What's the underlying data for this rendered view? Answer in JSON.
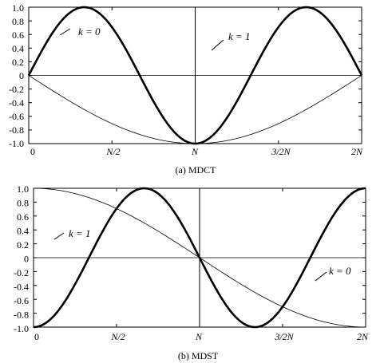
{
  "chart_data": [
    {
      "type": "line",
      "caption": "(a) MDCT",
      "xlim": [
        0,
        2
      ],
      "ylim": [
        -1.0,
        1.0
      ],
      "x_ticks": [
        {
          "value": 0,
          "label": "0"
        },
        {
          "value": 0.5,
          "label": "N/2"
        },
        {
          "value": 1,
          "label": "N"
        },
        {
          "value": 1.5,
          "label": "3/2N"
        },
        {
          "value": 2,
          "label": "2N"
        }
      ],
      "y_ticks": [
        "1.0",
        "0.8",
        "0.6",
        "0.4",
        "0.2",
        "0",
        "-0.2",
        "-0.4",
        "-0.6",
        "-0.8",
        "-1.0"
      ],
      "zero_line": true,
      "vertical_marker_at": 1,
      "grid": false,
      "series": [
        {
          "name": "k = 0",
          "function": "cos",
          "k": 0,
          "stroke": "thin"
        },
        {
          "name": "k = 1",
          "function": "cos",
          "k": 1,
          "stroke": "thick"
        }
      ],
      "annotations": [
        {
          "text": "k = 0",
          "series": "k = 0",
          "x": 0.22
        },
        {
          "text": "k = 1",
          "series": "k = 1",
          "x": 1.1
        }
      ]
    },
    {
      "type": "line",
      "caption": "(b) MDST",
      "xlim": [
        0,
        2
      ],
      "ylim": [
        -1.0,
        1.0
      ],
      "x_ticks": [
        {
          "value": 0,
          "label": "0"
        },
        {
          "value": 0.5,
          "label": "N/2"
        },
        {
          "value": 1,
          "label": "N"
        },
        {
          "value": 1.5,
          "label": "3/2N"
        },
        {
          "value": 2,
          "label": "2N"
        }
      ],
      "y_ticks": [
        "1.0",
        "0.8",
        "0.6",
        "0.4",
        "0.2",
        "0",
        "-0.2",
        "-0.4",
        "-0.6",
        "-0.8",
        "-1.0"
      ],
      "zero_line": true,
      "vertical_marker_at": 1,
      "grid": false,
      "series": [
        {
          "name": "k = 1",
          "function": "sin",
          "k": 1,
          "stroke": "thick"
        },
        {
          "name": "k = 0",
          "function": "sin",
          "k": 0,
          "stroke": "thin"
        }
      ],
      "annotations": [
        {
          "text": "k = 1",
          "series": "k = 1",
          "x": 0.12
        },
        {
          "text": "k = 0",
          "series": "k = 0",
          "x": 1.7
        }
      ]
    }
  ]
}
